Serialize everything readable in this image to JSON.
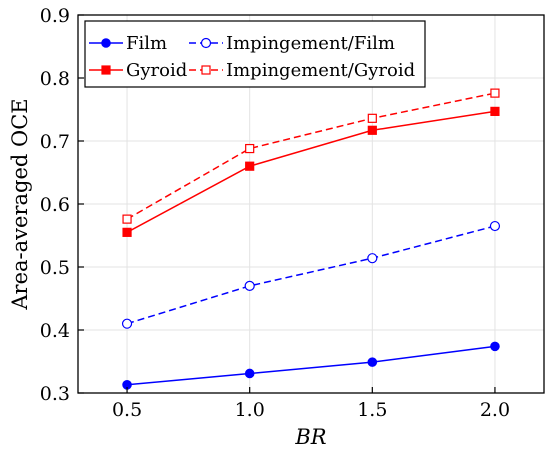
{
  "chart_data": {
    "type": "line",
    "x": [
      0.5,
      1.0,
      1.5,
      2.0
    ],
    "x_tick_labels": [
      "0.5",
      "1.0",
      "1.5",
      "2.0"
    ],
    "y_ticks": [
      0.3,
      0.4,
      0.5,
      0.6,
      0.7,
      0.8,
      0.9
    ],
    "y_tick_labels": [
      "0.3",
      "0.4",
      "0.5",
      "0.6",
      "0.7",
      "0.8",
      "0.9"
    ],
    "xlabel": "BR",
    "ylabel": "Area-averaged OCE",
    "xlim": [
      0.3,
      2.2
    ],
    "ylim": [
      0.3,
      0.9
    ],
    "grid": true,
    "legend_position": "top",
    "series": [
      {
        "name": "Film",
        "color": "#0000ff",
        "line_style": "solid",
        "marker": "filled-circle",
        "values": [
          0.313,
          0.331,
          0.349,
          0.374
        ]
      },
      {
        "name": "Impingement/Film",
        "color": "#0000ff",
        "line_style": "dashed",
        "marker": "open-circle",
        "values": [
          0.41,
          0.47,
          0.514,
          0.565
        ]
      },
      {
        "name": "Gyroid",
        "color": "#ff0000",
        "line_style": "solid",
        "marker": "filled-square",
        "values": [
          0.555,
          0.66,
          0.717,
          0.747
        ]
      },
      {
        "name": "Impingement/Gyroid",
        "color": "#ff0000",
        "line_style": "dashed",
        "marker": "open-square",
        "values": [
          0.576,
          0.688,
          0.736,
          0.776
        ]
      }
    ]
  }
}
